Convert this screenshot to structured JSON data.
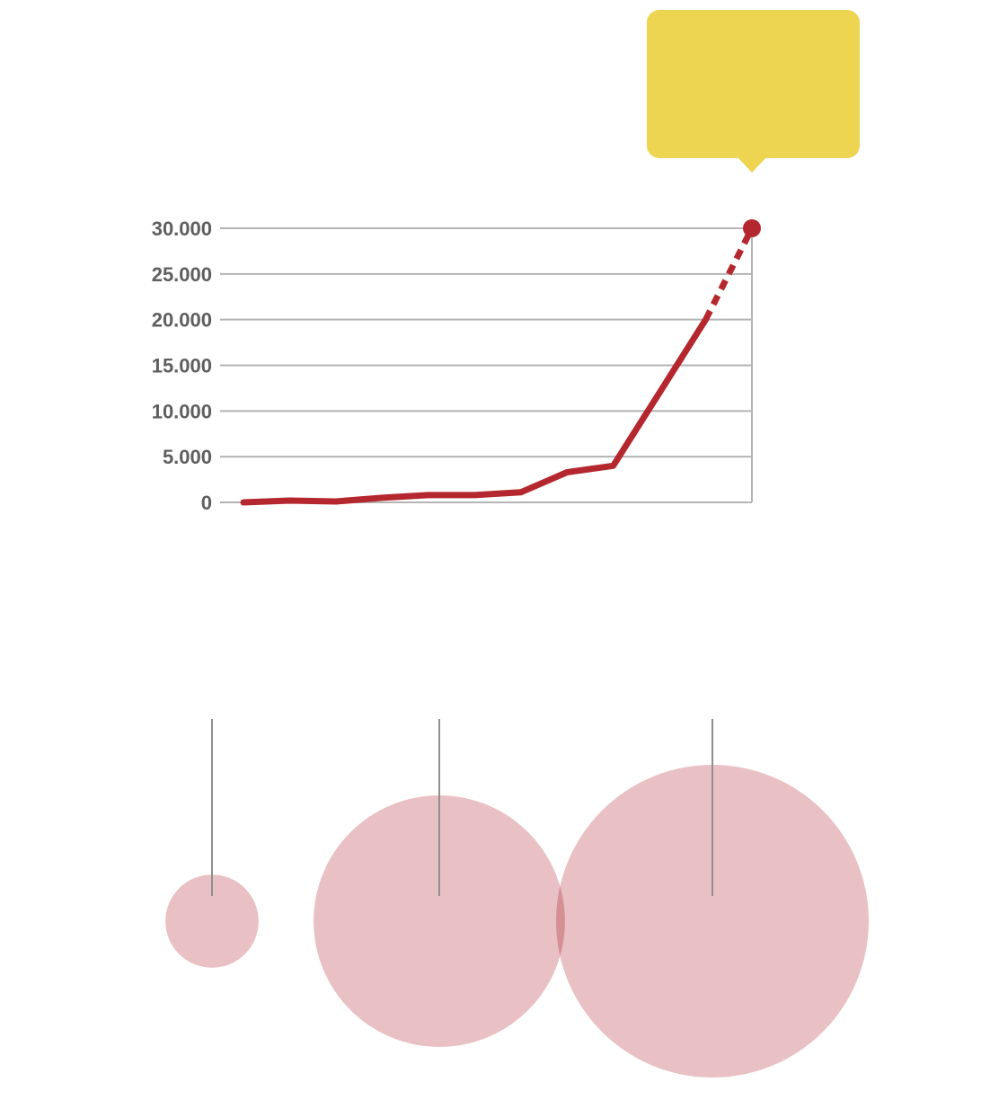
{
  "colors": {
    "line": "#b5272e",
    "grid": "#b4b4b4",
    "axis_text": "#5e5e5e",
    "callout": "#edd451",
    "bubble": "#e8bdc0",
    "stem": "#8f8f8f"
  },
  "chart_data": [
    {
      "type": "line",
      "title": "",
      "xlabel": "",
      "ylabel": "",
      "ylim": [
        0,
        30000
      ],
      "yticks": [
        0,
        5000,
        10000,
        15000,
        20000,
        25000,
        30000
      ],
      "ytick_labels": [
        "0",
        "5.000",
        "10.000",
        "15.000",
        "20.000",
        "25.000",
        "30.000"
      ],
      "grid": true,
      "x": [
        0,
        1,
        2,
        3,
        4,
        5,
        6,
        7,
        8,
        9,
        10,
        11
      ],
      "xlim": [
        0,
        11
      ],
      "series": [
        {
          "style": "solid",
          "values": [
            0,
            200,
            100,
            500,
            800,
            800,
            1100,
            3300,
            4000,
            12000,
            20000,
            null
          ]
        },
        {
          "style": "dashed",
          "values": [
            null,
            null,
            null,
            null,
            null,
            null,
            null,
            null,
            null,
            null,
            20000,
            30000
          ]
        }
      ],
      "highlight_point": {
        "x": 11,
        "y": 30000
      },
      "callout": {
        "text": "",
        "position": "above-last-point"
      }
    },
    {
      "type": "bubble",
      "title": "",
      "note": "three bubbles sized by value, each with a vertical stem above it",
      "values": [
        1,
        7.3,
        11.3
      ]
    }
  ]
}
